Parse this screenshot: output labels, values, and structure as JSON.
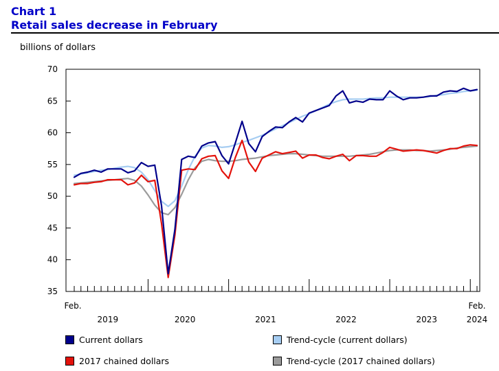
{
  "chart_data": {
    "type": "line",
    "title": "Chart 1",
    "subtitle": "Retail sales decrease in February",
    "ylabel": "billions of dollars",
    "ylim": [
      35,
      70
    ],
    "yticks": [
      35,
      40,
      45,
      50,
      55,
      60,
      65,
      70
    ],
    "x_start": "2019-02",
    "x_end": "2024-02",
    "year_labels": [
      "2019",
      "2020",
      "2021",
      "2022",
      "2023",
      "2024"
    ],
    "start_label": "Feb.",
    "end_label": "Feb.",
    "legend_position": "bottom",
    "series": [
      {
        "name": "Current dollars",
        "color": "#00008b",
        "style": "solid",
        "values": [
          53.0,
          53.6,
          53.8,
          54.1,
          53.8,
          54.3,
          54.3,
          54.3,
          53.7,
          54.0,
          55.3,
          54.7,
          54.9,
          48.5,
          37.8,
          44.8,
          55.8,
          56.3,
          56.1,
          57.9,
          58.4,
          58.6,
          56.4,
          55.1,
          58.4,
          61.8,
          58.3,
          57.0,
          59.4,
          60.2,
          60.9,
          60.8,
          61.7,
          62.4,
          61.7,
          63.1,
          63.5,
          63.9,
          64.3,
          65.8,
          66.6,
          64.7,
          65.0,
          64.8,
          65.3,
          65.2,
          65.2,
          66.6,
          65.8,
          65.2,
          65.5,
          65.5,
          65.6,
          65.8,
          65.8,
          66.4,
          66.6,
          66.5,
          67.0,
          66.6,
          66.8
        ]
      },
      {
        "name": "Trend-cycle (current dollars)",
        "color": "#a6cdf2",
        "style": "solid",
        "values": [
          53.3,
          53.5,
          53.7,
          53.9,
          54.1,
          54.2,
          54.4,
          54.6,
          54.7,
          54.5,
          53.8,
          52.6,
          50.9,
          49.2,
          48.4,
          49.3,
          51.6,
          54.2,
          56.3,
          57.6,
          58.0,
          57.9,
          57.7,
          57.8,
          58.1,
          58.5,
          58.8,
          59.2,
          59.6,
          60.1,
          60.6,
          61.1,
          61.6,
          62.1,
          62.6,
          63.0,
          63.5,
          64.0,
          64.5,
          64.9,
          65.2,
          65.3,
          65.3,
          65.3,
          65.4,
          65.5,
          65.5,
          65.6,
          65.6,
          65.6,
          65.6,
          65.6,
          65.6,
          65.7,
          65.9,
          66.0,
          66.2,
          66.3,
          66.5,
          66.6,
          66.7
        ]
      },
      {
        "name": "2017 chained dollars",
        "color": "#e3120b",
        "style": "solid",
        "values": [
          51.8,
          52.0,
          52.0,
          52.2,
          52.3,
          52.6,
          52.6,
          52.6,
          51.8,
          52.1,
          53.3,
          52.3,
          52.5,
          45.7,
          37.2,
          43.9,
          54.1,
          54.3,
          54.2,
          55.9,
          56.3,
          56.4,
          54.0,
          52.8,
          56.1,
          58.8,
          55.4,
          53.9,
          56.0,
          56.5,
          57.0,
          56.7,
          56.9,
          57.1,
          56.0,
          56.5,
          56.5,
          56.1,
          55.9,
          56.3,
          56.6,
          55.6,
          56.4,
          56.4,
          56.3,
          56.3,
          56.9,
          57.7,
          57.4,
          57.1,
          57.2,
          57.3,
          57.2,
          57.0,
          56.8,
          57.2,
          57.5,
          57.5,
          57.9,
          58.1,
          58.0
        ]
      },
      {
        "name": "Trend-cycle (2017 chained dollars)",
        "color": "#9b9b9b",
        "style": "solid",
        "values": [
          52.0,
          52.1,
          52.2,
          52.3,
          52.4,
          52.5,
          52.6,
          52.7,
          52.8,
          52.5,
          51.6,
          50.2,
          48.6,
          47.4,
          47.1,
          48.2,
          50.3,
          52.6,
          54.5,
          55.5,
          55.8,
          55.6,
          55.5,
          55.5,
          55.6,
          55.8,
          55.9,
          56.0,
          56.2,
          56.4,
          56.5,
          56.6,
          56.7,
          56.7,
          56.6,
          56.5,
          56.4,
          56.3,
          56.3,
          56.3,
          56.3,
          56.3,
          56.4,
          56.5,
          56.6,
          56.8,
          57.0,
          57.2,
          57.3,
          57.3,
          57.3,
          57.2,
          57.2,
          57.1,
          57.2,
          57.3,
          57.4,
          57.6,
          57.7,
          57.8,
          57.9
        ]
      }
    ]
  }
}
